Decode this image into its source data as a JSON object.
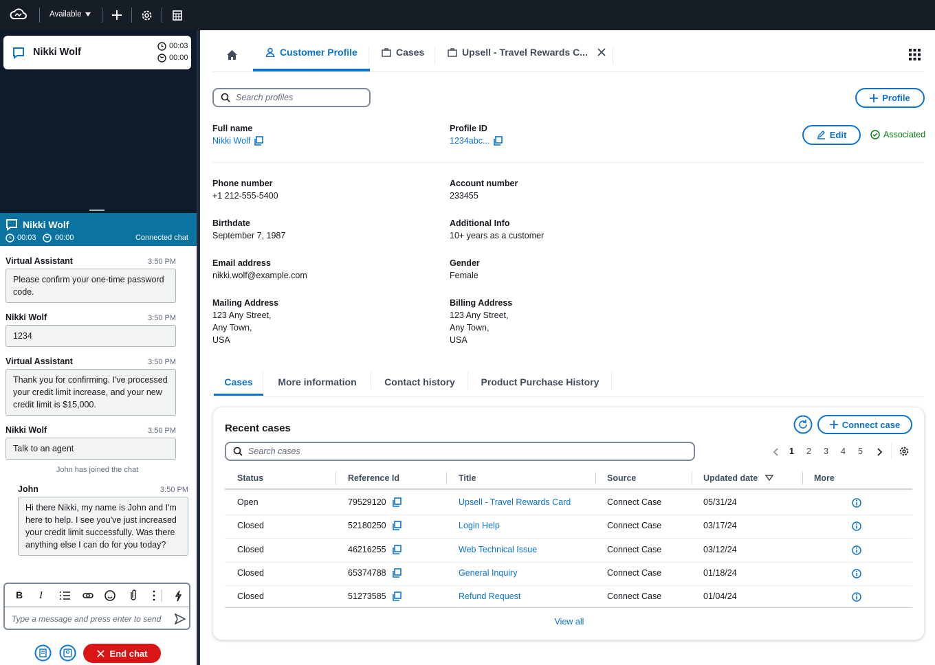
{
  "top_bar": {
    "status": "Available"
  },
  "contact_card": {
    "name": "Nikki Wolf",
    "timer_1": "00:03",
    "timer_2": "00:00"
  },
  "chat": {
    "header": {
      "name": "Nikki Wolf",
      "timer_1": "00:03",
      "timer_2": "00:00",
      "status": "Connected chat"
    },
    "messages": [
      {
        "sender": "Virtual Assistant",
        "time": "3:50 PM",
        "text": "Please confirm your one-time password code."
      },
      {
        "sender": "Nikki Wolf",
        "time": "3:50 PM",
        "text": "1234"
      },
      {
        "sender": "Virtual Assistant",
        "time": "3:50 PM",
        "text": "Thank you for confirming. I've processed your credit limit increase, and your new credit limit is $15,000."
      },
      {
        "sender": "Nikki Wolf",
        "time": "3:50 PM",
        "text": "Talk to an agent"
      }
    ],
    "event": "John has joined the chat",
    "agent_message": {
      "sender": "John",
      "time": "3:50 PM",
      "text": "Hi there Nikki, my name is John and I'm here to help. I see you've just increased your credit limit successfully. Was there anything else I can do for you today?"
    },
    "composer_placeholder": "Type a message and press enter to send",
    "end_chat": "End chat"
  },
  "tabs": [
    "Customer Profile",
    "Cases",
    "Upsell - Travel Rewards C..."
  ],
  "profile": {
    "search_placeholder": "Search profiles",
    "add_button": "Profile",
    "edit_button": "Edit",
    "status": "Associated",
    "fields": [
      {
        "label": "Full name",
        "value": "Nikki Wolf"
      },
      {
        "label": "Profile ID",
        "value": "1234abc..."
      },
      {
        "label": "Phone number",
        "value": "+1 212-555-5400"
      },
      {
        "label": "Account number",
        "value": "233455"
      },
      {
        "label": "Birthdate",
        "value": "September 7, 1987"
      },
      {
        "label": "Additional Info",
        "value": "10+ years as a customer"
      },
      {
        "label": "Email address",
        "value": "nikki.wolf@example.com"
      },
      {
        "label": "Gender",
        "value": "Female"
      },
      {
        "label": "Mailing Address",
        "value": "123 Any Street,\nAny Town,\nUSA"
      },
      {
        "label": "Billing Address",
        "value": "123 Any Street,\nAny Town,\nUSA"
      }
    ]
  },
  "sub_tabs": [
    "Cases",
    "More information",
    "Contact history",
    "Product Purchase History"
  ],
  "recent_cases": {
    "title": "Recent cases",
    "connect_button": "Connect case",
    "search_placeholder": "Search cases",
    "pages": [
      1,
      2,
      3,
      4,
      5
    ],
    "columns": [
      "Status",
      "Reference Id",
      "Title",
      "Source",
      "Updated date",
      "More"
    ],
    "rows": [
      [
        "Open",
        "79529120",
        "Upsell - Travel Rewards Card",
        "Connect Case",
        "05/31/24"
      ],
      [
        "Closed",
        "52180250",
        "Login Help",
        "Connect Case",
        "03/17/24"
      ],
      [
        "Closed",
        "46216255",
        "Web Technical Issue",
        "Connect Case",
        "03/12/24"
      ],
      [
        "Closed",
        "65374788",
        "General Inquiry",
        "Connect Case",
        "01/18/24"
      ],
      [
        "Closed",
        "51273585",
        "Refund Request",
        "Connect Case",
        "01/04/24"
      ]
    ],
    "view_all": "View all"
  }
}
